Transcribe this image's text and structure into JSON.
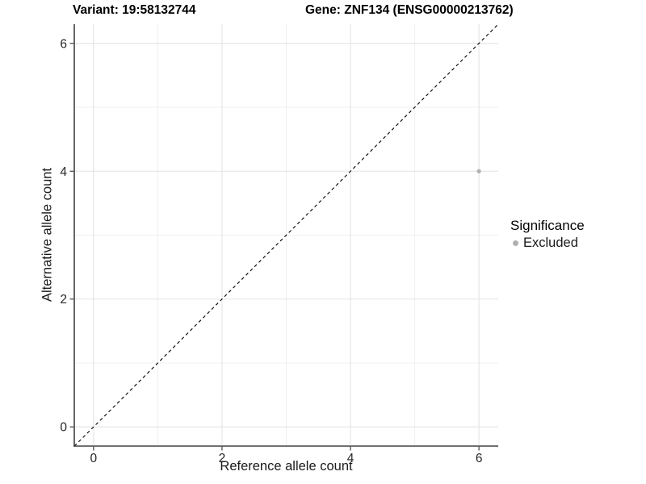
{
  "header": {
    "variant_title": "Variant: 19:58132744",
    "gene_title": "Gene: ZNF134 (ENSG00000213762)"
  },
  "axes": {
    "x": {
      "label": "Reference allele count"
    },
    "y": {
      "label": "Alternative allele count"
    }
  },
  "legend": {
    "title": "Significance",
    "items": [
      {
        "label": "Excluded",
        "color": "#b0b0b0"
      }
    ]
  },
  "colors": {
    "background": "#ffffff",
    "axis": "#404040",
    "tick_text": "#262626",
    "grid_major": "#e4e4e4",
    "grid_minor": "#f0f0f0",
    "ref_line": "#000000",
    "excluded_point": "#b0b0b0"
  },
  "chart_data": {
    "type": "scatter",
    "title": "Variant: 19:58132744   Gene: ZNF134 (ENSG00000213762)",
    "xlabel": "Reference allele count",
    "ylabel": "Alternative allele count",
    "xlim": [
      -0.3,
      6.3
    ],
    "ylim": [
      -0.3,
      6.3
    ],
    "x_ticks": [
      0,
      2,
      4,
      6
    ],
    "y_ticks": [
      0,
      2,
      4,
      6
    ],
    "x_tick_labels": [
      "0",
      "2",
      "4",
      "6"
    ],
    "y_tick_labels": [
      "0",
      "2",
      "4",
      "6"
    ],
    "grid": "on",
    "legend_position": "right",
    "reference_line": {
      "type": "identity",
      "style": "dashed",
      "from": [
        -0.3,
        -0.3
      ],
      "to": [
        6.3,
        6.3
      ]
    },
    "series": [
      {
        "name": "Excluded",
        "color": "#b0b0b0",
        "points": [
          {
            "x": 6,
            "y": 4
          }
        ]
      }
    ]
  }
}
